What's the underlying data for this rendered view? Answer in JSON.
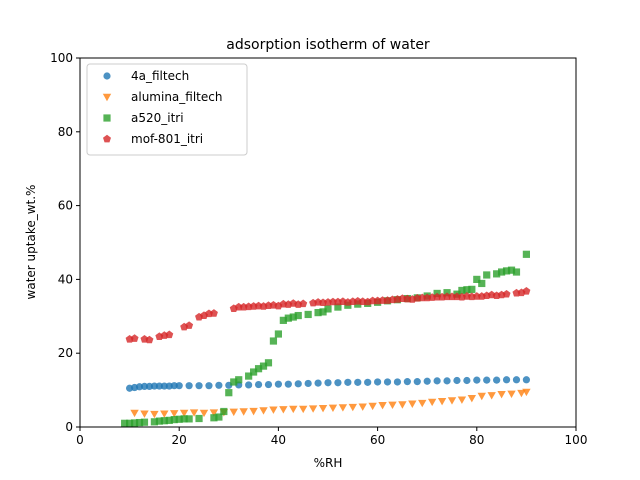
{
  "chart_data": {
    "type": "scatter",
    "title": "adsorption isotherm of water",
    "xlabel": "%RH",
    "ylabel": "water uptake_wt.%",
    "xlim": [
      0,
      100
    ],
    "ylim": [
      0,
      100
    ],
    "xticks": [
      0,
      20,
      40,
      60,
      80,
      100
    ],
    "yticks": [
      0,
      20,
      40,
      60,
      80,
      100
    ],
    "grid": false,
    "legend_position": "top-left",
    "series": [
      {
        "name": "4a_filtech",
        "color": "#1f77b4",
        "marker": "circle",
        "x": [
          10,
          11,
          12,
          13,
          14,
          15,
          16,
          17,
          18,
          19,
          20,
          22,
          24,
          26,
          28,
          30,
          32,
          34,
          36,
          38,
          40,
          42,
          44,
          46,
          48,
          50,
          52,
          54,
          56,
          58,
          60,
          62,
          64,
          66,
          68,
          70,
          72,
          74,
          76,
          78,
          80,
          82,
          84,
          86,
          88,
          90
        ],
        "y": [
          10.5,
          10.7,
          10.9,
          11.0,
          11.0,
          11.1,
          11.1,
          11.1,
          11.1,
          11.2,
          11.2,
          11.2,
          11.2,
          11.2,
          11.3,
          11.3,
          11.4,
          11.4,
          11.5,
          11.5,
          11.6,
          11.6,
          11.7,
          11.8,
          11.9,
          12.0,
          12.0,
          12.1,
          12.1,
          12.1,
          12.2,
          12.2,
          12.2,
          12.3,
          12.3,
          12.4,
          12.5,
          12.5,
          12.6,
          12.6,
          12.7,
          12.7,
          12.7,
          12.8,
          12.8,
          12.8
        ]
      },
      {
        "name": "alumina_filtech",
        "color": "#ff7f0e",
        "marker": "triangle-down",
        "x": [
          11,
          13,
          15,
          17,
          19,
          21,
          23,
          25,
          27,
          29,
          31,
          33,
          35,
          37,
          39,
          41,
          43,
          45,
          47,
          49,
          51,
          53,
          55,
          57,
          59,
          61,
          63,
          65,
          67,
          69,
          71,
          73,
          75,
          77,
          79,
          81,
          83,
          85,
          87,
          89,
          90
        ],
        "y": [
          3.8,
          3.6,
          3.5,
          3.6,
          3.7,
          3.8,
          3.9,
          3.8,
          3.9,
          4.0,
          4.1,
          4.2,
          4.3,
          4.5,
          4.7,
          4.8,
          4.9,
          4.9,
          5.0,
          5.1,
          5.2,
          5.3,
          5.4,
          5.5,
          5.7,
          5.9,
          6.0,
          6.1,
          6.3,
          6.5,
          6.8,
          7.0,
          7.2,
          7.4,
          7.8,
          8.4,
          8.6,
          8.9,
          9.0,
          9.2,
          9.5
        ]
      },
      {
        "name": "a520_itri",
        "color": "#2ca02c",
        "marker": "square",
        "x": [
          9,
          10,
          11,
          12,
          13,
          15,
          16,
          17,
          18,
          19,
          20,
          21,
          22,
          24,
          27,
          28,
          29,
          30,
          31,
          32,
          34,
          35,
          36,
          37,
          38,
          39,
          40,
          41,
          42,
          43,
          44,
          46,
          48,
          49,
          50,
          52,
          54,
          56,
          58,
          60,
          62,
          64,
          66,
          68,
          70,
          72,
          74,
          76,
          77,
          78,
          79,
          80,
          81,
          82,
          84,
          85,
          86,
          87,
          88,
          90
        ],
        "y": [
          1.0,
          1.0,
          1.1,
          1.2,
          1.3,
          1.4,
          1.6,
          1.7,
          1.8,
          2.0,
          2.1,
          2.2,
          2.2,
          2.3,
          2.5,
          2.7,
          4.2,
          9.3,
          12.2,
          12.8,
          13.8,
          14.9,
          15.8,
          16.5,
          17.4,
          23.3,
          25.2,
          28.9,
          29.5,
          29.8,
          30.2,
          30.5,
          31.0,
          31.2,
          32.0,
          32.5,
          33.0,
          33.3,
          33.5,
          33.8,
          34.2,
          34.5,
          34.8,
          35.0,
          35.5,
          36.2,
          36.4,
          36.0,
          37.0,
          37.2,
          37.3,
          40.0,
          38.9,
          41.2,
          41.5,
          42.0,
          42.3,
          42.5,
          42.0,
          46.8
        ]
      },
      {
        "name": "mof-801_itri",
        "color": "#d62728",
        "marker": "pentagon",
        "x": [
          10,
          11,
          13,
          14,
          16,
          17,
          18,
          21,
          22,
          24,
          25,
          26,
          27,
          31,
          32,
          33,
          34,
          35,
          36,
          37,
          38,
          39,
          40,
          41,
          42,
          43,
          44,
          45,
          47,
          48,
          49,
          50,
          51,
          52,
          53,
          54,
          55,
          56,
          57,
          58,
          59,
          60,
          61,
          62,
          63,
          64,
          65,
          66,
          67,
          68,
          69,
          70,
          71,
          72,
          73,
          74,
          75,
          76,
          77,
          78,
          79,
          80,
          81,
          82,
          83,
          84,
          85,
          86,
          88,
          89,
          90
        ],
        "y": [
          23.8,
          24.0,
          23.8,
          23.6,
          24.5,
          24.8,
          25.0,
          27.1,
          27.5,
          29.8,
          30.2,
          30.7,
          30.8,
          32.1,
          32.5,
          32.5,
          32.6,
          32.7,
          32.8,
          32.7,
          32.9,
          33.0,
          32.8,
          33.3,
          33.2,
          33.5,
          33.2,
          33.4,
          33.6,
          33.8,
          33.7,
          33.8,
          33.9,
          33.9,
          34.0,
          33.8,
          34.0,
          34.1,
          34.0,
          33.9,
          34.2,
          34.2,
          34.3,
          34.3,
          34.5,
          34.6,
          34.8,
          34.7,
          34.6,
          34.9,
          35.0,
          35.0,
          35.1,
          35.2,
          35.2,
          35.3,
          35.3,
          35.3,
          35.2,
          35.4,
          35.3,
          35.4,
          35.4,
          35.6,
          35.8,
          35.6,
          35.8,
          36.0,
          36.3,
          36.4,
          36.8
        ]
      }
    ]
  }
}
